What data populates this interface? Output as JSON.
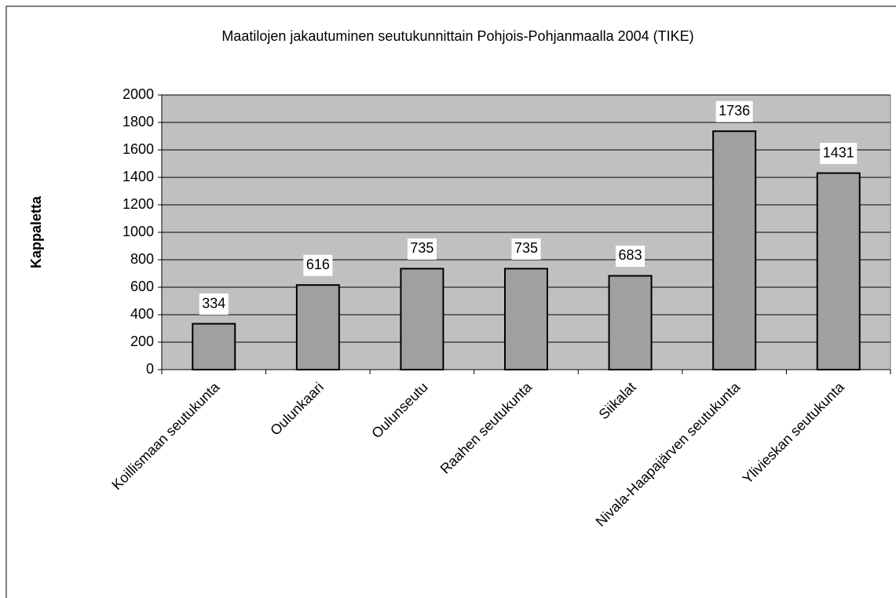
{
  "chart_data": {
    "type": "bar",
    "title": "Maatilojen jakautuminen seutukunnittain Pohjois-Pohjanmaalla 2004 (TIKE)",
    "y_label": "Kappaletta",
    "categories": [
      "Koillismaan seutukunta",
      "Oulunkaari",
      "Oulunseutu",
      "Raahen seutukunta",
      "Siikalat",
      "Nivala-Haapajärven seutukunta",
      "Ylivieskan seutukunta"
    ],
    "values": [
      334,
      616,
      735,
      735,
      683,
      1736,
      1431
    ],
    "color": "#a0a0a0",
    "ylim": [
      0,
      2000
    ],
    "yticks": [
      0,
      200,
      400,
      600,
      800,
      1000,
      1200,
      1400,
      1600,
      1800,
      2000
    ],
    "grid": true
  }
}
